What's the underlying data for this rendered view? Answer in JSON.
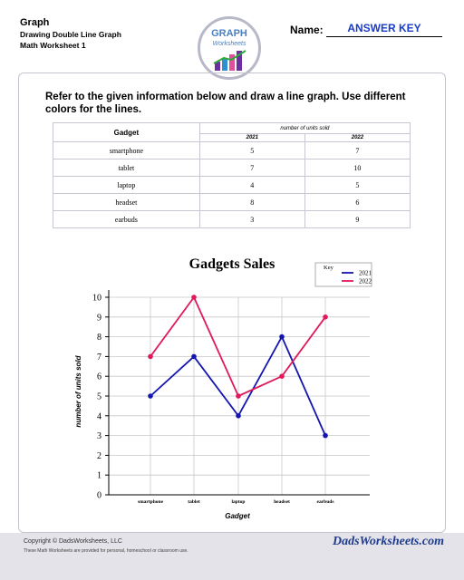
{
  "header": {
    "title": "Graph",
    "subtitle1": "Drawing Double Line Graph",
    "subtitle2": "Math Worksheet 1",
    "logo_line1": "GRAPH",
    "logo_line2": "Worksheets",
    "name_label": "Name:",
    "name_value": "ANSWER KEY"
  },
  "instructions": "Refer to the given information below and draw a line graph. Use different colors for the lines.",
  "table": {
    "gadget_header": "Gadget",
    "group_header": "number of units sold",
    "years": [
      "2021",
      "2022"
    ],
    "rows": [
      [
        "smartphone",
        "5",
        "7"
      ],
      [
        "tablet",
        "7",
        "10"
      ],
      [
        "laptop",
        "4",
        "5"
      ],
      [
        "headset",
        "8",
        "6"
      ],
      [
        "earbuds",
        "3",
        "9"
      ]
    ]
  },
  "chart_data": {
    "type": "line",
    "title": "Gadgets Sales",
    "xlabel": "Gadget",
    "ylabel": "number of units sold",
    "categories": [
      "smartphone",
      "tablet",
      "laptop",
      "headset",
      "earbuds"
    ],
    "series": [
      {
        "name": "2021",
        "values": [
          5,
          7,
          4,
          8,
          3
        ],
        "color": "#1515b0"
      },
      {
        "name": "2022",
        "values": [
          7,
          10,
          5,
          6,
          9
        ],
        "color": "#e0195a"
      }
    ],
    "ylim": [
      0,
      10
    ],
    "yticks": [
      0,
      1,
      2,
      3,
      4,
      5,
      6,
      7,
      8,
      9,
      10
    ],
    "grid": true,
    "legend_title": "Key",
    "legend_position": "top-right"
  },
  "footer": {
    "copyright": "Copyright © DadsWorksheets, LLC",
    "notice": "These Math Worksheets are provided for personal, homeschool or classroom use.",
    "brand": "DadsWorksheets.com"
  }
}
